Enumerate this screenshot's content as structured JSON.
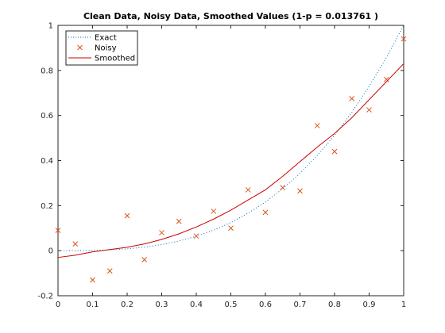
{
  "chart_data": {
    "type": "line",
    "title": "Clean Data, Noisy Data, Smoothed Values (1-p = 0.013761 )",
    "xlabel": "",
    "ylabel": "",
    "xlim": [
      0,
      1
    ],
    "ylim": [
      -0.2,
      1
    ],
    "x_ticks": [
      0,
      0.1,
      0.2,
      0.3,
      0.4,
      0.5,
      0.6,
      0.7,
      0.8,
      0.9,
      1
    ],
    "y_ticks": [
      -0.2,
      0,
      0.2,
      0.4,
      0.6,
      0.8,
      1
    ],
    "x_tick_labels": [
      "0",
      "0.1",
      "0.2",
      "0.3",
      "0.4",
      "0.5",
      "0.6",
      "0.7",
      "0.8",
      "0.9",
      "1"
    ],
    "y_tick_labels": [
      "-0.2",
      "0",
      "0.2",
      "0.4",
      "0.6",
      "0.8",
      "1"
    ],
    "grid": false,
    "legend_position": "top-left",
    "series": [
      {
        "name": "Exact",
        "style": "dotted",
        "color": "#0072bd",
        "x": [
          0,
          0.05,
          0.1,
          0.15,
          0.2,
          0.25,
          0.3,
          0.35,
          0.4,
          0.45,
          0.5,
          0.55,
          0.6,
          0.65,
          0.7,
          0.75,
          0.8,
          0.85,
          0.9,
          0.95,
          1
        ],
        "y": [
          0,
          0.0001,
          0.001,
          0.0034,
          0.008,
          0.0156,
          0.027,
          0.0429,
          0.064,
          0.0911,
          0.125,
          0.1664,
          0.216,
          0.2746,
          0.343,
          0.4219,
          0.512,
          0.6141,
          0.729,
          0.8574,
          1
        ]
      },
      {
        "name": "Noisy",
        "style": "marker-x",
        "color": "#d95319",
        "x": [
          0,
          0.05,
          0.1,
          0.15,
          0.2,
          0.25,
          0.3,
          0.35,
          0.4,
          0.45,
          0.5,
          0.55,
          0.6,
          0.65,
          0.7,
          0.75,
          0.8,
          0.85,
          0.9,
          0.95,
          1
        ],
        "y": [
          0.09,
          0.03,
          -0.13,
          -0.09,
          0.155,
          -0.04,
          0.08,
          0.13,
          0.065,
          0.175,
          0.1,
          0.27,
          0.17,
          0.28,
          0.265,
          0.555,
          0.44,
          0.675,
          0.625,
          0.76,
          0.94
        ]
      },
      {
        "name": "Smoothed",
        "style": "solid",
        "color": "#cc0000",
        "x": [
          0,
          0.05,
          0.1,
          0.15,
          0.2,
          0.25,
          0.3,
          0.35,
          0.4,
          0.45,
          0.5,
          0.55,
          0.6,
          0.65,
          0.7,
          0.75,
          0.8,
          0.85,
          0.9,
          0.95,
          1
        ],
        "y": [
          -0.03,
          -0.02,
          -0.005,
          0.005,
          0.015,
          0.03,
          0.05,
          0.075,
          0.105,
          0.14,
          0.18,
          0.225,
          0.27,
          0.33,
          0.395,
          0.46,
          0.52,
          0.59,
          0.67,
          0.75,
          0.83
        ]
      }
    ]
  }
}
